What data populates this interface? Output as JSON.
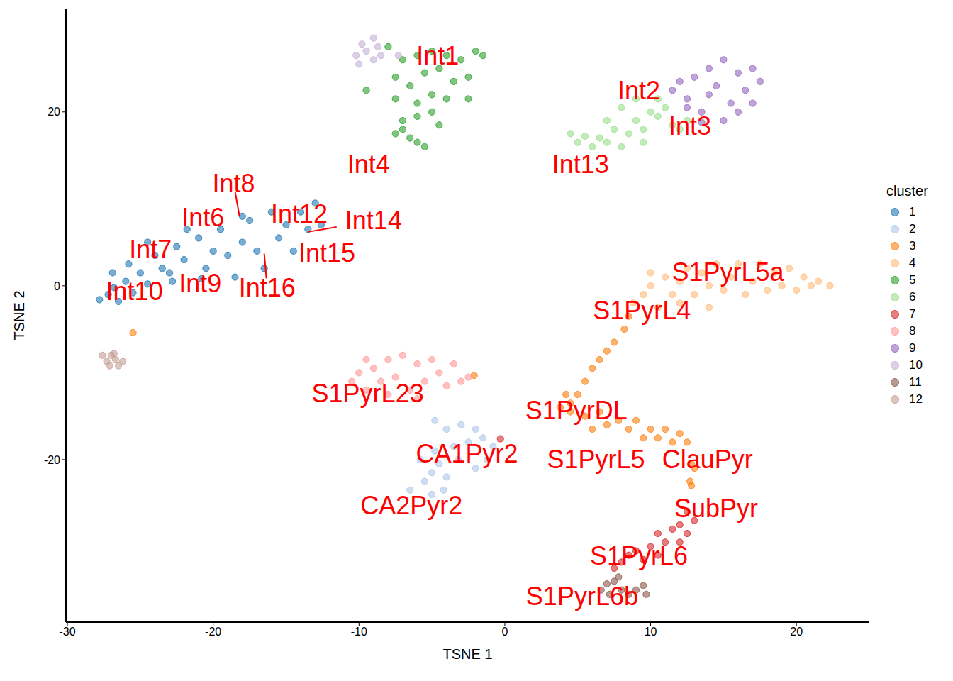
{
  "chart_data": {
    "type": "scatter",
    "x_label": "TSNE 1",
    "y_label": "TSNE 2",
    "xlim": [
      -30.1,
      25
    ],
    "ylim": [
      -38.7,
      31.9
    ],
    "xticks": [
      -30,
      -20,
      -10,
      0,
      10,
      20
    ],
    "yticks": [
      -20,
      0,
      20
    ],
    "grid": false,
    "legend": "right",
    "legend_title": "cluster",
    "marker": "circle",
    "series": [
      {
        "name": "1",
        "color": "#1f77b4",
        "values": [
          [
            -27.8,
            -1.6
          ],
          [
            -27.2,
            -1
          ],
          [
            -26.8,
            -0.2
          ],
          [
            -26.5,
            -1.8
          ],
          [
            -26,
            0.5
          ],
          [
            -25.5,
            -0.8
          ],
          [
            -25.8,
            2.5
          ],
          [
            -25,
            1.5
          ],
          [
            -24.5,
            0.2
          ],
          [
            -24,
            3.5
          ],
          [
            -23.5,
            2
          ],
          [
            -23,
            1.5
          ],
          [
            -22.5,
            4.5
          ],
          [
            -22,
            3
          ],
          [
            -21.8,
            6.5
          ],
          [
            -21,
            5.5
          ],
          [
            -20.5,
            2
          ],
          [
            -20,
            4
          ],
          [
            -19.5,
            6.5
          ],
          [
            -19,
            3.5
          ],
          [
            -18.5,
            1
          ],
          [
            -18,
            5
          ],
          [
            -17.5,
            7.5
          ],
          [
            -17,
            4
          ],
          [
            -16.5,
            2
          ],
          [
            -16,
            8.5
          ],
          [
            -15.5,
            5.5
          ],
          [
            -15,
            7
          ],
          [
            -14.5,
            4
          ],
          [
            -14,
            8.5
          ],
          [
            -13.5,
            6.5
          ],
          [
            -13,
            9.5
          ],
          [
            -12.6,
            7
          ],
          [
            -22.8,
            0.5
          ],
          [
            -20.8,
            0.8
          ],
          [
            -26.9,
            1.5
          ],
          [
            -18,
            8
          ],
          [
            -24.5,
            5
          ]
        ]
      },
      {
        "name": "2",
        "color": "#aec7e8",
        "values": [
          [
            -4.8,
            -15.5
          ],
          [
            -4,
            -16.5
          ],
          [
            -3,
            -16
          ],
          [
            -2,
            -16.5
          ],
          [
            -1.5,
            -17.5
          ],
          [
            -2.5,
            -18
          ],
          [
            -0.8,
            -18.5
          ],
          [
            -1.2,
            -20
          ],
          [
            -2,
            -21
          ],
          [
            -3.5,
            -18.5
          ],
          [
            -4.5,
            -20.5
          ],
          [
            -5,
            -21.5
          ],
          [
            -4,
            -22
          ],
          [
            -5.5,
            -22.5
          ],
          [
            -6.5,
            -23.5
          ],
          [
            -5,
            -24
          ],
          [
            -4.2,
            -23.5
          ],
          [
            -5.8,
            -20
          ],
          [
            -4.8,
            -19
          ],
          [
            -3.2,
            -20
          ]
        ]
      },
      {
        "name": "3",
        "color": "#ff7f0e",
        "values": [
          [
            8.5,
            -3.5
          ],
          [
            8.2,
            -5
          ],
          [
            7.5,
            -6.5
          ],
          [
            7,
            -7.5
          ],
          [
            6.5,
            -8.5
          ],
          [
            6,
            -9.5
          ],
          [
            5.5,
            -11
          ],
          [
            5,
            -12.5
          ],
          [
            4.2,
            -12.5
          ],
          [
            3.8,
            -14
          ],
          [
            4.5,
            -14.5
          ],
          [
            5.5,
            -15
          ],
          [
            6.5,
            -14.5
          ],
          [
            7,
            -16
          ],
          [
            6,
            -16.5
          ],
          [
            7.8,
            -15.5
          ],
          [
            8.5,
            -16.5
          ],
          [
            9,
            -15.5
          ],
          [
            10,
            -16.5
          ],
          [
            10.5,
            -17.5
          ],
          [
            11,
            -16.5
          ],
          [
            11.5,
            -18
          ],
          [
            12,
            -17
          ],
          [
            12.5,
            -18
          ],
          [
            12.8,
            -20.5
          ],
          [
            13,
            -21
          ],
          [
            12.7,
            -22.5
          ],
          [
            12.8,
            -23
          ],
          [
            -25.5,
            -5.4
          ],
          [
            -2.1,
            -10.3
          ],
          [
            4.5,
            -13.5
          ],
          [
            9.5,
            -17.5
          ]
        ]
      },
      {
        "name": "4",
        "color": "#ffbb78",
        "values": [
          [
            8.8,
            -2
          ],
          [
            9.5,
            -1
          ],
          [
            10,
            0
          ],
          [
            10.5,
            -2.5
          ],
          [
            11,
            1
          ],
          [
            11.5,
            -1
          ],
          [
            12,
            0.5
          ],
          [
            12.5,
            2
          ],
          [
            13,
            -1
          ],
          [
            13.5,
            1.5
          ],
          [
            14,
            0
          ],
          [
            14.5,
            2.5
          ],
          [
            15,
            -0.5
          ],
          [
            15.5,
            1
          ],
          [
            16,
            2.5
          ],
          [
            16.5,
            -1
          ],
          [
            17,
            0.5
          ],
          [
            17.5,
            2.5
          ],
          [
            18,
            -0.5
          ],
          [
            18.5,
            1.5
          ],
          [
            19,
            0
          ],
          [
            19.5,
            2
          ],
          [
            20,
            -0.5
          ],
          [
            20.5,
            1
          ],
          [
            21,
            0
          ],
          [
            21.5,
            0.5
          ],
          [
            22.3,
            0
          ],
          [
            10,
            1.5
          ],
          [
            12,
            -2
          ],
          [
            14,
            -2.5
          ]
        ]
      },
      {
        "name": "5",
        "color": "#2ca02c",
        "values": [
          [
            -8,
            27.5
          ],
          [
            -7,
            26
          ],
          [
            -6,
            26.5
          ],
          [
            -5,
            27
          ],
          [
            -4,
            26.5
          ],
          [
            -3,
            26
          ],
          [
            -2,
            27
          ],
          [
            -1.5,
            26.5
          ],
          [
            -7.5,
            24
          ],
          [
            -6.5,
            23
          ],
          [
            -5.5,
            24.5
          ],
          [
            -4.5,
            25
          ],
          [
            -3.5,
            23.5
          ],
          [
            -2.5,
            24
          ],
          [
            -7.5,
            21.5
          ],
          [
            -6,
            21
          ],
          [
            -5,
            22
          ],
          [
            -4,
            21.5
          ],
          [
            -2.5,
            21.5
          ],
          [
            -7,
            19
          ],
          [
            -6,
            19.5
          ],
          [
            -5,
            20
          ],
          [
            -7.5,
            17.5
          ],
          [
            -6.5,
            17
          ],
          [
            -6,
            16.5
          ],
          [
            -5.5,
            16
          ],
          [
            -7,
            18
          ],
          [
            -9.5,
            22.5
          ],
          [
            -4.5,
            18.5
          ]
        ]
      },
      {
        "name": "6",
        "color": "#98df8a",
        "values": [
          [
            4.5,
            17.5
          ],
          [
            5,
            16.5
          ],
          [
            5.5,
            17.2
          ],
          [
            6,
            16
          ],
          [
            6.5,
            17
          ],
          [
            7,
            16.5
          ],
          [
            7.5,
            18
          ],
          [
            8,
            16
          ],
          [
            8.5,
            17.5
          ],
          [
            9,
            19
          ],
          [
            9.5,
            18
          ],
          [
            10,
            20
          ],
          [
            10.5,
            19.5
          ],
          [
            11,
            20.5
          ],
          [
            11.5,
            18.5
          ],
          [
            12,
            18
          ],
          [
            12.5,
            19
          ],
          [
            8,
            20.5
          ],
          [
            9,
            21.5
          ],
          [
            10.5,
            21.5
          ],
          [
            7,
            19
          ],
          [
            9.5,
            16.5
          ]
        ]
      },
      {
        "name": "7",
        "color": "#d62728",
        "values": [
          [
            12.5,
            -26
          ],
          [
            13,
            -27
          ],
          [
            12,
            -27.5
          ],
          [
            11.5,
            -28
          ],
          [
            10.5,
            -28.5
          ],
          [
            12.5,
            -28.5
          ],
          [
            11,
            -29.5
          ],
          [
            10,
            -30
          ],
          [
            9,
            -30.5
          ],
          [
            8.5,
            -31
          ],
          [
            9.5,
            -31.5
          ],
          [
            7.5,
            -32.5
          ],
          [
            8,
            -31.8
          ],
          [
            10.5,
            -31
          ],
          [
            12,
            -29.5
          ],
          [
            -0.3,
            -17.6
          ]
        ]
      },
      {
        "name": "8",
        "color": "#ff9896",
        "values": [
          [
            -10.5,
            -11
          ],
          [
            -10,
            -10
          ],
          [
            -9.5,
            -12
          ],
          [
            -9,
            -9.5
          ],
          [
            -8.5,
            -11
          ],
          [
            -8,
            -8.5
          ],
          [
            -7.5,
            -10.5
          ],
          [
            -7,
            -8
          ],
          [
            -6.5,
            -12
          ],
          [
            -6,
            -9
          ],
          [
            -5.5,
            -11
          ],
          [
            -5,
            -8.5
          ],
          [
            -4.5,
            -10
          ],
          [
            -4,
            -11.5
          ],
          [
            -3.5,
            -9
          ],
          [
            -3,
            -11
          ],
          [
            -2.5,
            -10.5
          ],
          [
            -8,
            -12.5
          ],
          [
            -6,
            -13
          ],
          [
            -9.5,
            -8.5
          ]
        ]
      },
      {
        "name": "9",
        "color": "#9467bd",
        "values": [
          [
            11.5,
            22.5
          ],
          [
            12,
            23.5
          ],
          [
            12.5,
            21.5
          ],
          [
            13,
            24
          ],
          [
            13.5,
            20
          ],
          [
            14,
            22
          ],
          [
            14,
            25
          ],
          [
            14.5,
            23
          ],
          [
            15,
            26
          ],
          [
            15,
            19
          ],
          [
            15.5,
            21
          ],
          [
            16,
            24.5
          ],
          [
            16,
            20
          ],
          [
            16.5,
            22.5
          ],
          [
            17,
            25
          ],
          [
            17,
            21
          ],
          [
            17.5,
            23.5
          ],
          [
            13.5,
            18.8
          ],
          [
            12.5,
            20.5
          ]
        ]
      },
      {
        "name": "10",
        "color": "#c5b0d5",
        "values": [
          [
            -10.2,
            26.5
          ],
          [
            -10,
            25.5
          ],
          [
            -9.5,
            27
          ],
          [
            -9,
            28.5
          ],
          [
            -9,
            26
          ],
          [
            -8.7,
            27.5
          ],
          [
            -8.5,
            26.5
          ],
          [
            -9.8,
            27.8
          ],
          [
            -7.3,
            26.5
          ]
        ]
      },
      {
        "name": "11",
        "color": "#8c564b",
        "values": [
          [
            6.6,
            -35
          ],
          [
            7,
            -34.3
          ],
          [
            7.2,
            -35.5
          ],
          [
            7.5,
            -34
          ],
          [
            8,
            -35
          ],
          [
            8.5,
            -35.5
          ],
          [
            9,
            -35
          ],
          [
            9.5,
            -34.5
          ],
          [
            9.7,
            -35.5
          ],
          [
            7.8,
            -33.5
          ]
        ]
      },
      {
        "name": "12",
        "color": "#c49c94",
        "values": [
          [
            -27.6,
            -8
          ],
          [
            -27.3,
            -8.7
          ],
          [
            -27,
            -8
          ],
          [
            -26.7,
            -8.5
          ],
          [
            -26.5,
            -9.2
          ],
          [
            -26.2,
            -8.7
          ],
          [
            -27.1,
            -9.2
          ],
          [
            -26.8,
            -7.8
          ]
        ]
      }
    ],
    "annotations": [
      {
        "text": "Int1",
        "x": -4.6,
        "y": 26.5
      },
      {
        "text": "Int2",
        "x": 9.2,
        "y": 22.5
      },
      {
        "text": "Int3",
        "x": 12.7,
        "y": 18.4
      },
      {
        "text": "Int4",
        "x": -9.35,
        "y": 14.0
      },
      {
        "text": "Int13",
        "x": 5.2,
        "y": 14.0
      },
      {
        "text": "Int8",
        "x": -18.6,
        "y": 11.8,
        "point": [
          -18.2,
          8.0
        ]
      },
      {
        "text": "Int6",
        "x": -20.7,
        "y": 7.9
      },
      {
        "text": "Int12",
        "x": -14.1,
        "y": 8.3
      },
      {
        "text": "Int14",
        "x": -9.0,
        "y": 7.5,
        "point": [
          -13.5,
          6.2
        ]
      },
      {
        "text": "Int15",
        "x": -12.2,
        "y": 3.8
      },
      {
        "text": "Int7",
        "x": -24.3,
        "y": 4.2
      },
      {
        "text": "Int16",
        "x": -16.3,
        "y": -0.2,
        "point": [
          -16.5,
          3.7
        ]
      },
      {
        "text": "Int9",
        "x": -20.9,
        "y": 0.3
      },
      {
        "text": "Int10",
        "x": -25.4,
        "y": -0.6
      },
      {
        "text": "S1PyrL5a",
        "x": 15.3,
        "y": 1.6
      },
      {
        "text": "S1PyrL4",
        "x": 9.4,
        "y": -2.8
      },
      {
        "text": "S1PyrL23",
        "x": -9.4,
        "y": -12.4
      },
      {
        "text": "S1PyrDL",
        "x": 4.9,
        "y": -14.3
      },
      {
        "text": "CA1Pyr2",
        "x": -2.6,
        "y": -19.3
      },
      {
        "text": "S1PyrL5",
        "x": 6.25,
        "y": -20.0
      },
      {
        "text": "ClauPyr",
        "x": 13.9,
        "y": -20.0
      },
      {
        "text": "CA2Pyr2",
        "x": -6.4,
        "y": -25.3
      },
      {
        "text": "SubPyr",
        "x": 14.5,
        "y": -25.6
      },
      {
        "text": "S1PyrL6",
        "x": 9.2,
        "y": -31.1
      },
      {
        "text": "S1PyrL6b",
        "x": 5.3,
        "y": -35.7
      }
    ]
  }
}
